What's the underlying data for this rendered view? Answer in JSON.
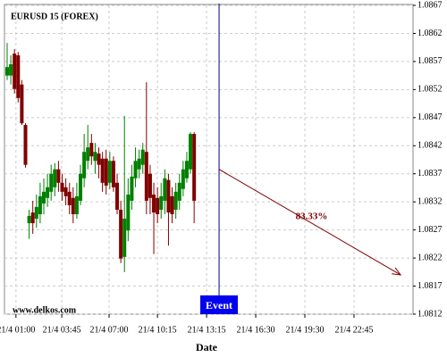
{
  "chart_data": {
    "type": "candlestick",
    "title": "EURUSD 15 (FOREX)",
    "source": "www.delkos.com",
    "xlabel": "Date",
    "x": [
      0,
      1,
      2,
      3,
      4,
      5,
      6,
      7,
      8,
      9,
      10,
      11,
      12,
      13,
      14,
      15,
      16,
      17,
      18,
      19,
      20,
      21,
      22,
      23,
      24,
      25,
      26,
      27,
      28,
      29,
      30,
      31,
      32,
      33,
      34,
      35,
      36,
      37,
      38,
      39,
      40,
      41,
      42,
      43,
      44,
      45,
      46,
      47,
      48,
      49,
      50,
      51
    ],
    "open": [
      1.08545,
      1.08545,
      1.08584,
      1.08581,
      1.08529,
      1.08457,
      1.08282,
      1.08301,
      1.0829,
      1.08298,
      1.08317,
      1.08327,
      1.08338,
      1.08346,
      1.08378,
      1.08354,
      1.08346,
      1.08338,
      1.08327,
      1.08298,
      1.08322,
      1.08362,
      1.08393,
      1.08425,
      1.08393,
      1.08406,
      1.08397,
      1.08397,
      1.08354,
      1.08393,
      1.08354,
      1.08306,
      1.08222,
      1.08269,
      1.08322,
      1.08362,
      1.08378,
      1.08386,
      1.08409,
      1.0837,
      1.08333,
      1.08327,
      1.08306,
      1.08322,
      1.08359,
      1.0833,
      1.08306,
      1.08322,
      1.08343,
      1.08362,
      1.08378,
      1.08441
    ],
    "high": [
      1.08603,
      1.08581,
      1.08592,
      1.08587,
      1.08537,
      1.0846,
      1.08306,
      1.08322,
      1.08333,
      1.08354,
      1.08362,
      1.0837,
      1.08386,
      1.08389,
      1.08393,
      1.0837,
      1.08362,
      1.08354,
      1.08346,
      1.08354,
      1.08386,
      1.08441,
      1.08457,
      1.08441,
      1.08425,
      1.08417,
      1.08409,
      1.08413,
      1.08409,
      1.08401,
      1.0837,
      1.08322,
      1.08473,
      1.08362,
      1.08386,
      1.08417,
      1.08413,
      1.08425,
      1.08533,
      1.08386,
      1.08354,
      1.08346,
      1.08354,
      1.08378,
      1.0837,
      1.08346,
      1.08354,
      1.0837,
      1.08393,
      1.08409,
      1.08444,
      1.08444
    ],
    "low": [
      1.08537,
      1.08529,
      1.08513,
      1.08497,
      1.08457,
      1.08381,
      1.08254,
      1.08263,
      1.08274,
      1.08282,
      1.08298,
      1.08311,
      1.08322,
      1.0833,
      1.08338,
      1.08322,
      1.08314,
      1.08298,
      1.08282,
      1.0829,
      1.08314,
      1.08346,
      1.08378,
      1.08386,
      1.0837,
      1.08362,
      1.08338,
      1.08333,
      1.08343,
      1.08338,
      1.08298,
      1.08211,
      1.08195,
      1.0825,
      1.08306,
      1.08346,
      1.08362,
      1.0837,
      1.08298,
      1.08298,
      1.08227,
      1.08282,
      1.0829,
      1.08298,
      1.08242,
      1.08282,
      1.0829,
      1.08306,
      1.0833,
      1.08354,
      1.0837,
      1.08282
    ],
    "close": [
      1.0856,
      1.08565,
      1.08521,
      1.08505,
      1.0846,
      1.08386,
      1.08295,
      1.08282,
      1.08311,
      1.0833,
      1.08338,
      1.08346,
      1.0837,
      1.08378,
      1.08354,
      1.08338,
      1.0833,
      1.08314,
      1.08298,
      1.0833,
      1.0837,
      1.08409,
      1.08417,
      1.08401,
      1.08409,
      1.08386,
      1.08354,
      1.08349,
      1.08393,
      1.08346,
      1.08306,
      1.08219,
      1.0829,
      1.08333,
      1.08365,
      1.08393,
      1.08397,
      1.08413,
      1.08322,
      1.08327,
      1.08301,
      1.08298,
      1.0833,
      1.08362,
      1.08301,
      1.08298,
      1.08338,
      1.08354,
      1.08378,
      1.08393,
      1.08441,
      1.08322
    ],
    "up_color": "#008000",
    "down_color": "#800000",
    "xlim": [
      -0.73,
      110.7
    ],
    "xticks": [
      {
        "value": 2.4,
        "label": "21/4 01:00"
      },
      {
        "value": 14.9,
        "label": "21/4 03:45"
      },
      {
        "value": 27.8,
        "label": "21/4 07:00"
      },
      {
        "value": 41,
        "label": "21/4 10:15"
      },
      {
        "value": 54.4,
        "label": "21/4 13:15"
      },
      {
        "value": 67.8,
        "label": "21/4 16:30"
      },
      {
        "value": 81.2,
        "label": "21/4 19:30"
      },
      {
        "value": 94.6,
        "label": "21/4 22:45"
      }
    ],
    "ylim": [
      1.0812,
      1.0867
    ],
    "yticks": [
      1.0867,
      1.0862,
      1.0857,
      1.0852,
      1.0847,
      1.0842,
      1.0837,
      1.0832,
      1.0827,
      1.0822,
      1.0817,
      1.0812
    ],
    "grid": true,
    "event": {
      "x": 57.8,
      "label": "Event",
      "color": "#000080"
    },
    "arrow": {
      "x": [
        57.8,
        107.3
      ],
      "y": [
        1.08378,
        1.0819
      ],
      "label": "83.33%",
      "color": "#800000"
    }
  }
}
